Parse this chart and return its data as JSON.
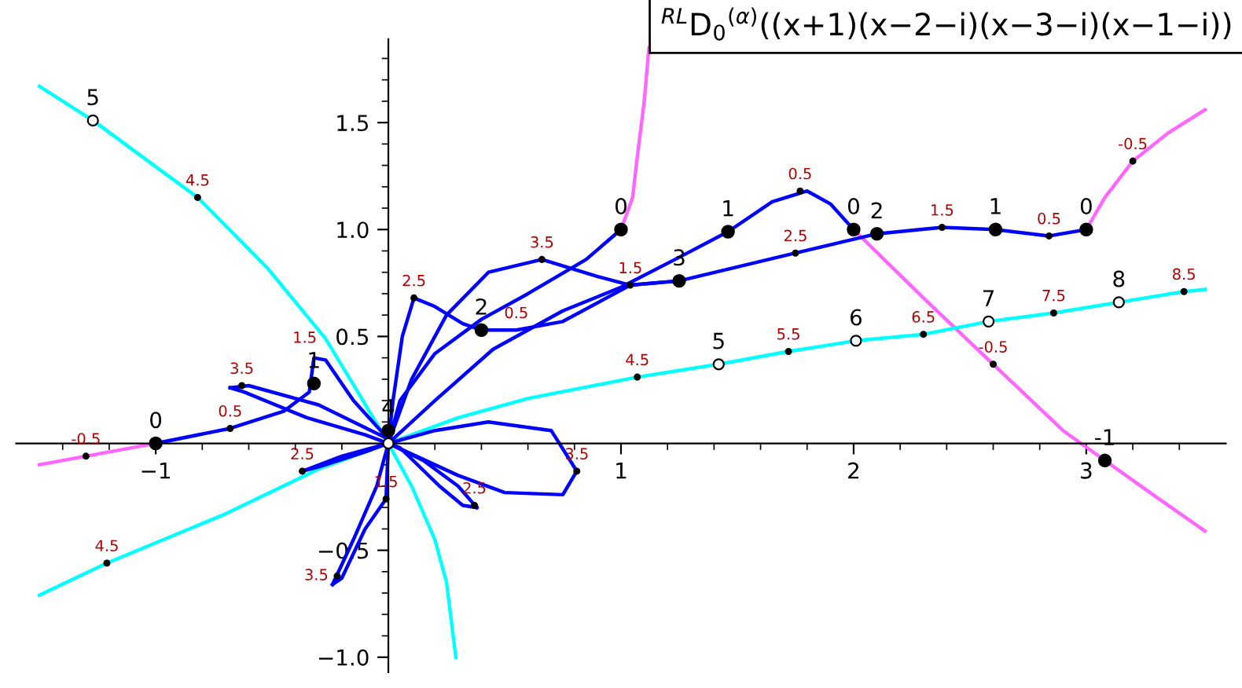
{
  "chart_data": {
    "type": "line",
    "title": "$^{RL}$D$_{0}$$^{(α)}$((x+1)(x−2−i)(x−3−i)(x−1−i))",
    "xlim": [
      -1.6,
      3.6
    ],
    "ylim": [
      -1.07,
      1.89
    ],
    "xticks": [
      {
        "value": -1.4,
        "label": null
      },
      {
        "value": -1.2,
        "label": null
      },
      {
        "value": -1,
        "label": "−1"
      },
      {
        "value": -0.8,
        "label": null
      },
      {
        "value": -0.6,
        "label": null
      },
      {
        "value": -0.4,
        "label": null
      },
      {
        "value": -0.2,
        "label": null
      },
      {
        "value": 0.2,
        "label": null
      },
      {
        "value": 0.4,
        "label": null
      },
      {
        "value": 0.6,
        "label": null
      },
      {
        "value": 0.8,
        "label": null
      },
      1,
      {
        "value": 1.2,
        "label": null
      },
      {
        "value": 1.4,
        "label": null
      },
      {
        "value": 1.6,
        "label": null
      },
      {
        "value": 1.8,
        "label": null
      },
      2,
      {
        "value": 2.2,
        "label": null
      },
      {
        "value": 2.4,
        "label": null
      },
      {
        "value": 2.6,
        "label": null
      },
      {
        "value": 2.8,
        "label": null
      },
      3,
      {
        "value": 3.2,
        "label": null
      },
      {
        "value": 3.4,
        "label": null
      }
    ],
    "yticks": [
      {
        "value": -1,
        "label": "−1.0"
      },
      {
        "value": -0.9,
        "label": null
      },
      {
        "value": -0.8,
        "label": null
      },
      {
        "value": -0.7,
        "label": null
      },
      {
        "value": -0.6,
        "label": null
      },
      {
        "value": -0.5,
        "label": "−0.5"
      },
      {
        "value": -0.4,
        "label": null
      },
      {
        "value": -0.3,
        "label": null
      },
      {
        "value": -0.2,
        "label": null
      },
      {
        "value": -0.1,
        "label": null
      },
      {
        "value": 0.1,
        "label": null
      },
      {
        "value": 0.2,
        "label": null
      },
      {
        "value": 0.3,
        "label": null
      },
      {
        "value": 0.4,
        "label": null
      },
      {
        "value": 0.5,
        "label": "0.5"
      },
      {
        "value": 0.6,
        "label": null
      },
      {
        "value": 0.7,
        "label": null
      },
      {
        "value": 0.8,
        "label": null
      },
      {
        "value": 0.9,
        "label": null
      },
      {
        "value": 1,
        "label": "1.0"
      },
      {
        "value": 1.1,
        "label": null
      },
      {
        "value": 1.2,
        "label": null
      },
      {
        "value": 1.3,
        "label": null
      },
      {
        "value": 1.4,
        "label": null
      },
      {
        "value": 1.5,
        "label": "1.5"
      },
      {
        "value": 1.6,
        "label": null
      },
      {
        "value": 1.7,
        "label": null
      },
      {
        "value": 1.8,
        "label": null
      }
    ],
    "grid": false,
    "legend": false,
    "line_style": "solid",
    "series": [
      {
        "type": "line",
        "color": "#ff66ff",
        "x": [
          -1.5,
          -1.3,
          -1.0
        ],
        "values": [
          -0.1,
          -0.06,
          0
        ]
      },
      {
        "type": "line",
        "color": "#ff66ff",
        "x": [
          1,
          1.05,
          1.07,
          1.1,
          1.12
        ],
        "values": [
          1,
          1.15,
          1.34,
          1.6,
          1.85
        ]
      },
      {
        "type": "line",
        "color": "#ff66ff",
        "x": [
          2,
          2.3,
          2.6,
          2.9,
          3.08,
          3.3,
          3.51
        ],
        "values": [
          1,
          0.68,
          0.37,
          0.06,
          -0.08,
          -0.25,
          -0.41
        ]
      },
      {
        "type": "line",
        "color": "#ff66ff",
        "x": [
          3,
          3.08,
          3.2,
          3.35,
          3.51
        ],
        "values": [
          1,
          1.15,
          1.32,
          1.45,
          1.56
        ]
      },
      {
        "type": "line",
        "color": "#00ffff",
        "x": [
          -1.5,
          -1.27,
          -0.82,
          -0.52,
          -0.27,
          -0.12,
          0
        ],
        "values": [
          1.67,
          1.51,
          1.15,
          0.82,
          0.49,
          0.22,
          0
        ]
      },
      {
        "type": "line",
        "color": "#00ffff",
        "x": [
          -1.5,
          -1.21,
          -0.7,
          -0.3,
          0
        ],
        "values": [
          -0.71,
          -0.56,
          -0.33,
          -0.12,
          0
        ]
      },
      {
        "type": "line",
        "color": "#00ffff",
        "x": [
          0,
          0.1,
          0.2,
          0.25,
          0.29
        ],
        "values": [
          0,
          -0.2,
          -0.45,
          -0.65,
          -1.0
        ]
      },
      {
        "type": "line",
        "color": "#00ffff",
        "x": [
          0,
          0.3,
          0.6,
          1.07,
          1.42,
          1.72,
          2.01,
          2.3,
          2.58,
          2.86,
          3.14,
          3.42,
          3.51
        ],
        "values": [
          0,
          0.12,
          0.21,
          0.31,
          0.37,
          0.43,
          0.48,
          0.51,
          0.57,
          0.61,
          0.66,
          0.71,
          0.72
        ]
      },
      {
        "type": "line",
        "color": "#0000ff",
        "x": [
          -1,
          -0.68,
          -0.45,
          -0.34,
          -0.32,
          -0.27,
          -0.15,
          0
        ],
        "values": [
          0,
          0.07,
          0.15,
          0.24,
          0.4,
          0.39,
          0.2,
          0.02
        ]
      },
      {
        "type": "line",
        "color": "#0000ff",
        "x": [
          0,
          -0.3,
          -0.6,
          -0.68
        ],
        "values": [
          0.02,
          0.18,
          0.27,
          0.26
        ]
      },
      {
        "type": "line",
        "color": "#0000ff",
        "x": [
          -0.68,
          -0.62,
          -0.35,
          -0.1,
          0
        ],
        "values": [
          0.26,
          0.24,
          0.12,
          0.04,
          0
        ]
      },
      {
        "type": "line",
        "color": "#0000ff",
        "x": [
          0,
          -0.2,
          -0.37
        ],
        "values": [
          0,
          -0.06,
          -0.13
        ]
      },
      {
        "type": "line",
        "color": "#0000ff",
        "x": [
          -0.37,
          -0.3,
          -0.1,
          0
        ],
        "values": [
          -0.13,
          -0.11,
          -0.04,
          0
        ]
      },
      {
        "type": "line",
        "color": "#0000ff",
        "x": [
          0,
          -0.05,
          -0.15,
          -0.24
        ],
        "values": [
          0,
          -0.2,
          -0.45,
          -0.66
        ]
      },
      {
        "type": "line",
        "color": "#0000ff",
        "x": [
          -0.24,
          -0.2,
          -0.1,
          -0.01,
          0
        ],
        "values": [
          -0.66,
          -0.63,
          -0.4,
          -0.26,
          0
        ]
      },
      {
        "type": "line",
        "color": "#0000ff",
        "x": [
          0,
          0.2,
          0.43,
          0.7,
          0.81
        ],
        "values": [
          0,
          0.06,
          0.1,
          0.06,
          -0.13
        ]
      },
      {
        "type": "line",
        "color": "#0000ff",
        "x": [
          0.81,
          0.75,
          0.5,
          0.3,
          0.1,
          0
        ],
        "values": [
          -0.13,
          -0.24,
          -0.23,
          -0.15,
          -0.05,
          0
        ]
      },
      {
        "type": "line",
        "color": "#0000ff",
        "x": [
          0,
          0.15,
          0.3,
          0.38
        ],
        "values": [
          0,
          -0.08,
          -0.2,
          -0.3
        ]
      },
      {
        "type": "line",
        "color": "#0000ff",
        "x": [
          0.38,
          0.32,
          0.22,
          0.05,
          0
        ],
        "values": [
          -0.3,
          -0.29,
          -0.2,
          -0.02,
          0
        ]
      },
      {
        "type": "line",
        "color": "#0000ff",
        "x": [
          3,
          2.84,
          2.61,
          2.38,
          2.1,
          1.75,
          1.25,
          1.04,
          0.9,
          0.66,
          0.43,
          0.25,
          0.1,
          0
        ],
        "values": [
          1,
          0.97,
          1.0,
          1.01,
          0.98,
          0.89,
          0.76,
          0.74,
          0.78,
          0.86,
          0.8,
          0.6,
          0.3,
          0
        ]
      },
      {
        "type": "line",
        "color": "#0000ff",
        "x": [
          2,
          1.9,
          1.8,
          1.65,
          1.46,
          1.25,
          1.0,
          0.75,
          0.45,
          0.2,
          0
        ],
        "values": [
          1,
          1.12,
          1.18,
          1.13,
          0.99,
          0.87,
          0.73,
          0.62,
          0.44,
          0.2,
          0
        ]
      },
      {
        "type": "line",
        "color": "#0000ff",
        "x": [
          0,
          0.02,
          0.06,
          0.11,
          0.2,
          0.32,
          0.4,
          0.55,
          0.75,
          1.04,
          1.25
        ],
        "values": [
          0,
          0.2,
          0.5,
          0.68,
          0.64,
          0.56,
          0.53,
          0.53,
          0.57,
          0.74,
          0.76
        ]
      },
      {
        "type": "line",
        "color": "#0000ff",
        "x": [
          1,
          0.85,
          0.6,
          0.4,
          0.2,
          0.05,
          0
        ],
        "values": [
          1,
          0.86,
          0.7,
          0.58,
          0.42,
          0.2,
          0
        ]
      },
      {
        "type": "scatter",
        "color": "#000000",
        "marker": "circle",
        "x": [
          -1,
          -0.32,
          0.4,
          1,
          1.46,
          1.25,
          2,
          2.1,
          2.61,
          3,
          3.08,
          0
        ],
        "values": [
          0,
          0.28,
          0.53,
          1,
          0.99,
          0.76,
          1,
          0.98,
          1.0,
          1.0,
          -0.08,
          0.06
        ]
      },
      {
        "type": "scatter",
        "color": "#ffffff",
        "marker": "circle",
        "x": [
          -1.27,
          1.42,
          2.01,
          2.58,
          3.14,
          0
        ],
        "values": [
          1.51,
          0.37,
          0.48,
          0.57,
          0.66,
          0
        ]
      },
      {
        "type": "scatter",
        "color": "#000000",
        "marker": "circle",
        "x": [
          -0.82,
          0.11,
          0.66,
          1.04,
          1.77,
          1.75,
          2.38,
          2.84,
          3.2,
          -0.63,
          -0.68,
          -1.3,
          -0.37,
          -0.01,
          0.81,
          0.37,
          -0.22,
          1.07,
          1.72,
          2.3,
          2.86,
          3.42,
          2.6,
          -1.21
        ],
        "values": [
          1.15,
          0.68,
          0.86,
          0.74,
          1.18,
          0.89,
          1.01,
          0.97,
          1.32,
          0.27,
          0.07,
          -0.06,
          -0.13,
          -0.26,
          -0.13,
          -0.29,
          -0.62,
          0.31,
          0.43,
          0.51,
          0.61,
          0.71,
          0.37,
          -0.56
        ]
      }
    ],
    "annotations": [
      {
        "text": "0",
        "x": -1,
        "y": 0
      },
      {
        "text": "1",
        "x": -0.32,
        "y": 0.28
      },
      {
        "text": "2",
        "x": 0.4,
        "y": 0.53
      },
      {
        "text": "0",
        "x": 1,
        "y": 1
      },
      {
        "text": "1",
        "x": 1.46,
        "y": 0.99
      },
      {
        "text": "3",
        "x": 1.25,
        "y": 0.76
      },
      {
        "text": "0",
        "x": 2,
        "y": 1
      },
      {
        "text": "2",
        "x": 2.1,
        "y": 0.98
      },
      {
        "text": "1",
        "x": 2.61,
        "y": 1.0
      },
      {
        "text": "0",
        "x": 3,
        "y": 1.0
      },
      {
        "text": "-1",
        "x": 3.08,
        "y": -0.08
      },
      {
        "text": "4",
        "x": 0,
        "y": 0.06
      },
      {
        "text": "5",
        "x": -1.27,
        "y": 1.51
      },
      {
        "text": "5",
        "x": 1.42,
        "y": 0.37
      },
      {
        "text": "6",
        "x": 2.01,
        "y": 0.48
      },
      {
        "text": "7",
        "x": 2.58,
        "y": 0.57
      },
      {
        "text": "8",
        "x": 3.14,
        "y": 0.66
      },
      {
        "text": "4.5",
        "x": -0.82,
        "y": 1.15
      },
      {
        "text": "2.5",
        "x": 0.11,
        "y": 0.68
      },
      {
        "text": "3.5",
        "x": 0.66,
        "y": 0.86
      },
      {
        "text": "1.5",
        "x": 1.04,
        "y": 0.74
      },
      {
        "text": "0.5",
        "x": 1.77,
        "y": 1.18
      },
      {
        "text": "2.5",
        "x": 1.75,
        "y": 0.89
      },
      {
        "text": "1.5",
        "x": 2.38,
        "y": 1.01
      },
      {
        "text": "0.5",
        "x": 2.84,
        "y": 0.97
      },
      {
        "text": "-0.5",
        "x": 3.2,
        "y": 1.32
      },
      {
        "text": "3.5",
        "x": -0.63,
        "y": 0.27
      },
      {
        "text": "0.5",
        "x": -0.68,
        "y": 0.07
      },
      {
        "text": "-0.5",
        "x": -1.3,
        "y": -0.06
      },
      {
        "text": "2.5",
        "x": -0.37,
        "y": -0.13
      },
      {
        "text": "1.5",
        "x": -0.01,
        "y": -0.26
      },
      {
        "text": "3.5",
        "x": 0.81,
        "y": -0.13
      },
      {
        "text": "2.5",
        "x": 0.37,
        "y": -0.29
      },
      {
        "text": "3.5",
        "x": -0.22,
        "y": -0.62
      },
      {
        "text": "4.5",
        "x": 1.07,
        "y": 0.31
      },
      {
        "text": "5.5",
        "x": 1.72,
        "y": 0.43
      },
      {
        "text": "6.5",
        "x": 2.3,
        "y": 0.51
      },
      {
        "text": "7.5",
        "x": 2.86,
        "y": 0.61
      },
      {
        "text": "8.5",
        "x": 3.42,
        "y": 0.71
      },
      {
        "text": "-0.5",
        "x": 2.6,
        "y": 0.37
      },
      {
        "text": "4.5",
        "x": -1.21,
        "y": -0.56
      },
      {
        "text": "0.5",
        "x": 0.55,
        "y": 0.53
      },
      {
        "text": "1.5",
        "x": -0.27,
        "y": 0.49
      }
    ]
  }
}
